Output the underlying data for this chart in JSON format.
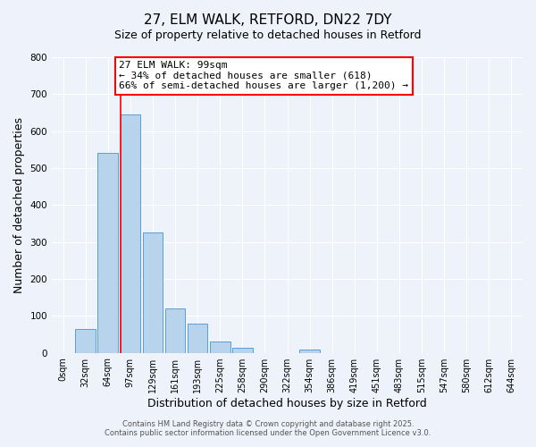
{
  "title": "27, ELM WALK, RETFORD, DN22 7DY",
  "subtitle": "Size of property relative to detached houses in Retford",
  "xlabel": "Distribution of detached houses by size in Retford",
  "ylabel": "Number of detached properties",
  "bar_labels": [
    "0sqm",
    "32sqm",
    "64sqm",
    "97sqm",
    "129sqm",
    "161sqm",
    "193sqm",
    "225sqm",
    "258sqm",
    "290sqm",
    "322sqm",
    "354sqm",
    "386sqm",
    "419sqm",
    "451sqm",
    "483sqm",
    "515sqm",
    "547sqm",
    "580sqm",
    "612sqm",
    "644sqm"
  ],
  "bar_values": [
    0,
    65,
    540,
    645,
    325,
    120,
    78,
    30,
    13,
    0,
    0,
    8,
    0,
    0,
    0,
    0,
    0,
    0,
    0,
    0,
    0
  ],
  "bar_color": "#b8d4ed",
  "bar_edge_color": "#5a9fd4",
  "vline_color": "red",
  "annotation_text": "27 ELM WALK: 99sqm\n← 34% of detached houses are smaller (618)\n66% of semi-detached houses are larger (1,200) →",
  "annotation_box_color": "white",
  "annotation_box_edge": "red",
  "ylim": [
    0,
    800
  ],
  "yticks": [
    0,
    100,
    200,
    300,
    400,
    500,
    600,
    700,
    800
  ],
  "background_color": "#eef2fb",
  "footer1": "Contains HM Land Registry data © Crown copyright and database right 2025.",
  "footer2": "Contains public sector information licensed under the Open Government Licence v3.0.",
  "title_fontsize": 11,
  "subtitle_fontsize": 9,
  "tick_fontsize": 7,
  "label_fontsize": 9,
  "footer_fontsize": 6
}
